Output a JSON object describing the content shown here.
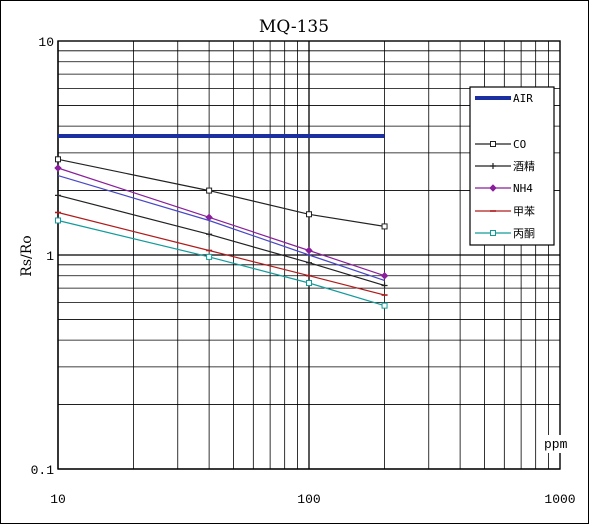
{
  "chart_data": {
    "type": "line",
    "title": "MQ-135",
    "xlabel": "ppm",
    "ylabel": "Rs/Ro",
    "x_scale": "log",
    "y_scale": "log",
    "xlim": [
      10,
      1000
    ],
    "ylim": [
      0.1,
      10
    ],
    "x_tick_labels": [
      "10",
      "100",
      "1000"
    ],
    "y_tick_labels": [
      "10",
      "1",
      "0.1"
    ],
    "grid": true,
    "legend_position": "top-right",
    "series": [
      {
        "name": "AIR",
        "color": "#1c2fa0",
        "marker": "none",
        "x": [
          10,
          200
        ],
        "y": [
          3.6,
          3.6
        ]
      },
      {
        "name": "CO",
        "color": "#222222",
        "marker": "square",
        "x": [
          10,
          40,
          100,
          200
        ],
        "y": [
          2.8,
          2.0,
          1.55,
          1.36
        ]
      },
      {
        "name": "酒精",
        "color": "#222222",
        "marker": "plus",
        "x": [
          10,
          40,
          100,
          200
        ],
        "y": [
          1.9,
          1.25,
          0.92,
          0.72
        ]
      },
      {
        "name": "NH4",
        "color": "#8a1f9c",
        "marker": "diamond",
        "x": [
          10,
          40,
          100,
          200
        ],
        "y": [
          2.55,
          1.5,
          1.05,
          0.8
        ]
      },
      {
        "name": "甲苯",
        "color": "#b01c1c",
        "marker": "dash",
        "x": [
          10,
          40,
          100,
          200
        ],
        "y": [
          1.58,
          1.05,
          0.8,
          0.65
        ]
      },
      {
        "name": "丙酮",
        "color": "#139b9b",
        "marker": "square",
        "x": [
          10,
          40,
          100,
          200
        ],
        "y": [
          1.45,
          0.98,
          0.74,
          0.58
        ]
      },
      {
        "name": "",
        "color": "#4848c8",
        "marker": "none",
        "x": [
          10,
          40,
          100,
          200
        ],
        "y": [
          2.35,
          1.45,
          1.0,
          0.76
        ]
      }
    ]
  }
}
